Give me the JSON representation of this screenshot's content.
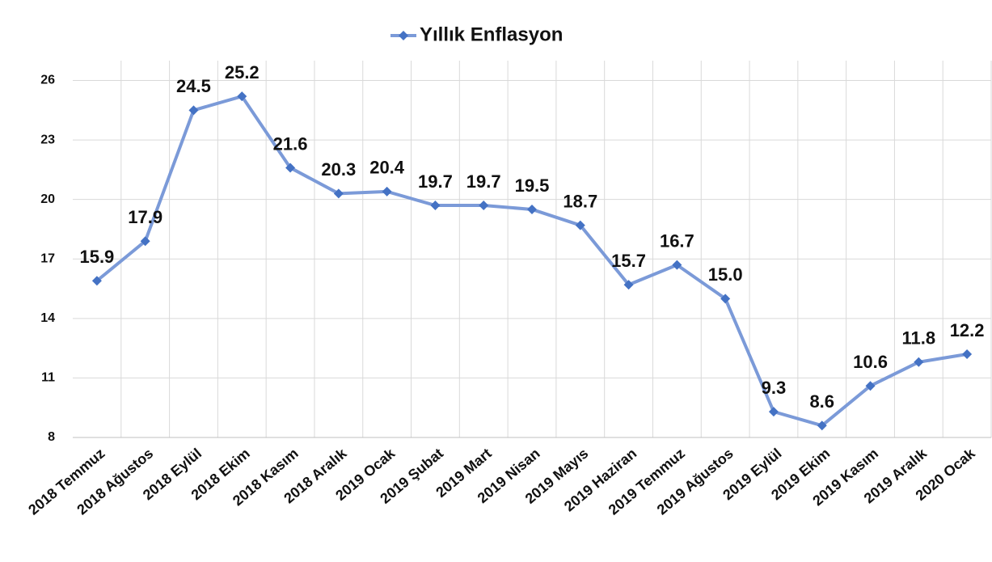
{
  "chart_data": {
    "type": "line",
    "categories": [
      "2018 Temmuz",
      "2018 Ağustos",
      "2018 Eylül",
      "2018 Ekim",
      "2018 Kasım",
      "2018 Aralık",
      "2019 Ocak",
      "2019 Şubat",
      "2019 Mart",
      "2019 Nisan",
      "2019 Mayıs",
      "2019 Haziran",
      "2019 Temmuz",
      "2019 Ağustos",
      "2019 Eylül",
      "2019 Ekim",
      "2019 Kasım",
      "2019 Aralık",
      "2020 Ocak"
    ],
    "series": [
      {
        "name": "Yıllık Enflasyon",
        "color": "#4472c4",
        "values": [
          15.9,
          17.9,
          24.5,
          25.2,
          21.6,
          20.3,
          20.4,
          19.7,
          19.7,
          19.5,
          18.7,
          15.7,
          16.7,
          15.0,
          9.3,
          8.6,
          10.6,
          11.8,
          12.2
        ],
        "value_labels": [
          "15.9",
          "17.9",
          "24.5",
          "25.2",
          "21.6",
          "20.3",
          "20.4",
          "19.7",
          "19.7",
          "19.5",
          "18.7",
          "15.7",
          "16.7",
          "15.0",
          "9.3",
          "8.6",
          "10.6",
          "11.8",
          "12.2"
        ]
      }
    ],
    "ylim": [
      8,
      27
    ],
    "yticks": [
      8,
      11,
      14,
      17,
      20,
      23,
      26
    ],
    "grid": true,
    "legend": "top"
  }
}
